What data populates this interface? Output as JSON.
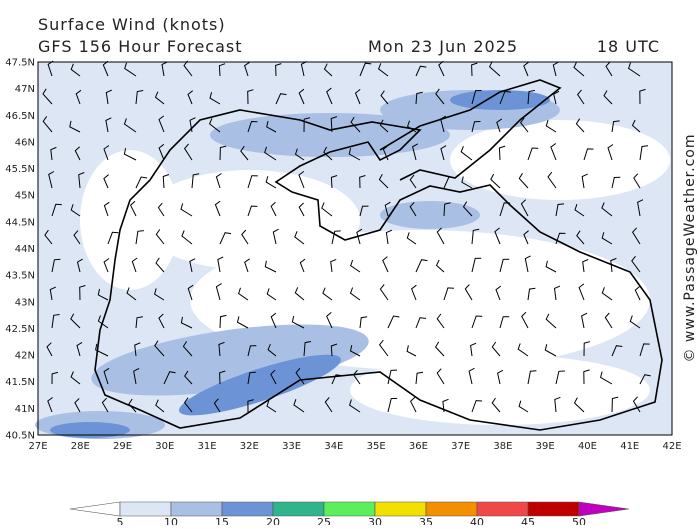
{
  "header": {
    "title": "Surface Wind (knots)",
    "subtitle": "GFS 156 Hour Forecast",
    "date": "Mon 23 Jun 2025",
    "time": "18 UTC"
  },
  "axes": {
    "lat_labels": [
      "47.5N",
      "47N",
      "46.5N",
      "46N",
      "45.5N",
      "45N",
      "44.5N",
      "44N",
      "43.5N",
      "43N",
      "42.5N",
      "42N",
      "41.5N",
      "41N",
      "40.5N"
    ],
    "lon_labels": [
      "27E",
      "28E",
      "29E",
      "30E",
      "31E",
      "32E",
      "33E",
      "34E",
      "35E",
      "36E",
      "37E",
      "38E",
      "39E",
      "40E",
      "41E",
      "42E"
    ]
  },
  "colorbar": {
    "labels": [
      5,
      10,
      15,
      20,
      25,
      30,
      35,
      40,
      45,
      50
    ],
    "colors": [
      "#ffffff",
      "#dce6f5",
      "#a9c0e4",
      "#6b93d6",
      "#2fb48c",
      "#5cef5c",
      "#f2e000",
      "#f29000",
      "#f04848",
      "#c00000",
      "#c000c0"
    ]
  },
  "credit": "© www.PassageWeather.com"
}
